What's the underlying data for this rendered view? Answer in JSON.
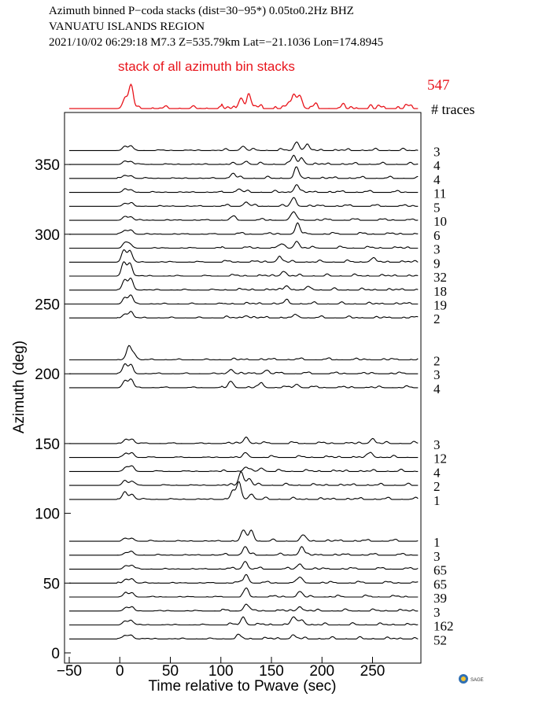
{
  "header": {
    "line1": "Azimuth binned P−coda stacks (dist=30−95*)  0.05to0.2Hz  BHZ",
    "line2": "VANUATU ISLANDS REGION",
    "line3": "2021/10/02  06:29:18  M7.3  Z=535.79km Lat=−21.1036 Lon=174.8945"
  },
  "logo_text": "SAGE",
  "chart_data": {
    "type": "line",
    "title": "",
    "xlabel": "Time relative to Pwave (sec)",
    "ylabel": "Azimuth (deg)",
    "xlim": [
      -50,
      295
    ],
    "ylim": [
      0,
      385
    ],
    "xticks": [
      -50,
      0,
      50,
      100,
      150,
      200,
      250
    ],
    "yticks": [
      0,
      50,
      100,
      150,
      200,
      250,
      300,
      350
    ],
    "xtick_labels": [
      "−50",
      "0",
      "50",
      "100",
      "150",
      "200",
      "250"
    ],
    "ytick_labels": [
      "0",
      "50",
      "100",
      "150",
      "200",
      "250",
      "300",
      "350"
    ],
    "stack": {
      "label": "stack of all azimuth bin stacks",
      "count": "547",
      "peaks": [
        [
          5,
          0.4
        ],
        [
          11,
          1.0
        ],
        [
          120,
          0.45
        ],
        [
          128,
          0.5
        ],
        [
          172,
          0.6
        ],
        [
          178,
          0.55
        ]
      ]
    },
    "count_header": "# traces",
    "series": [
      {
        "azimuth": 10,
        "count": "52",
        "peaks": [
          [
            5,
            0.4
          ],
          [
            11,
            0.45
          ],
          [
            118,
            0.35
          ],
          [
            172,
            0.4
          ]
        ]
      },
      {
        "azimuth": 20,
        "count": "162",
        "peaks": [
          [
            5,
            0.45
          ],
          [
            11,
            0.55
          ],
          [
            122,
            0.9
          ],
          [
            172,
            0.95
          ],
          [
            180,
            0.6
          ]
        ]
      },
      {
        "azimuth": 30,
        "count": "3",
        "peaks": [
          [
            6,
            0.4
          ],
          [
            12,
            0.4
          ],
          [
            125,
            0.8
          ],
          [
            178,
            0.5
          ]
        ]
      },
      {
        "azimuth": 40,
        "count": "39",
        "peaks": [
          [
            6,
            0.45
          ],
          [
            12,
            0.5
          ],
          [
            125,
            0.9
          ],
          [
            178,
            0.6
          ]
        ]
      },
      {
        "azimuth": 50,
        "count": "65",
        "peaks": [
          [
            6,
            0.45
          ],
          [
            12,
            0.5
          ],
          [
            125,
            1.0
          ],
          [
            178,
            0.7
          ]
        ]
      },
      {
        "azimuth": 60,
        "count": "65",
        "peaks": [
          [
            6,
            0.4
          ],
          [
            12,
            0.45
          ],
          [
            124,
            0.9
          ],
          [
            178,
            0.6
          ]
        ]
      },
      {
        "azimuth": 70,
        "count": "3",
        "peaks": [
          [
            6,
            0.3
          ],
          [
            12,
            0.35
          ],
          [
            124,
            1.0
          ],
          [
            180,
            1.0
          ]
        ]
      },
      {
        "azimuth": 80,
        "count": "1",
        "peaks": [
          [
            6,
            0.3
          ],
          [
            12,
            0.35
          ],
          [
            122,
            1.2
          ],
          [
            130,
            1.3
          ],
          [
            182,
            0.7
          ]
        ]
      },
      {
        "azimuth": 110,
        "count": "1",
        "peaks": [
          [
            5,
            0.9
          ],
          [
            12,
            0.6
          ],
          [
            112,
            1.0
          ],
          [
            118,
            1.8
          ],
          [
            130,
            0.6
          ]
        ]
      },
      {
        "azimuth": 120,
        "count": "2",
        "peaks": [
          [
            5,
            0.6
          ],
          [
            12,
            0.5
          ],
          [
            120,
            1.6
          ],
          [
            128,
            0.8
          ]
        ]
      },
      {
        "azimuth": 130,
        "count": "4",
        "peaks": [
          [
            6,
            0.5
          ],
          [
            12,
            0.6
          ],
          [
            125,
            0.5
          ],
          [
            140,
            0.4
          ]
        ]
      },
      {
        "azimuth": 140,
        "count": "12",
        "peaks": [
          [
            6,
            0.45
          ],
          [
            12,
            0.55
          ],
          [
            125,
            0.45
          ],
          [
            248,
            0.6
          ]
        ]
      },
      {
        "azimuth": 150,
        "count": "3",
        "peaks": [
          [
            6,
            0.5
          ],
          [
            12,
            0.5
          ],
          [
            125,
            0.75
          ],
          [
            250,
            0.55
          ]
        ]
      },
      {
        "azimuth": 190,
        "count": "4",
        "peaks": [
          [
            5,
            0.8
          ],
          [
            11,
            1.0
          ],
          [
            110,
            0.7
          ],
          [
            140,
            0.5
          ],
          [
            175,
            0.4
          ]
        ]
      },
      {
        "azimuth": 200,
        "count": "3",
        "peaks": [
          [
            5,
            1.1
          ],
          [
            11,
            1.0
          ],
          [
            110,
            0.5
          ],
          [
            145,
            0.4
          ]
        ]
      },
      {
        "azimuth": 210,
        "count": "2",
        "peaks": [
          [
            9,
            1.6
          ],
          [
            14,
            0.7
          ]
        ]
      },
      {
        "azimuth": 240,
        "count": "2",
        "peaks": [
          [
            5,
            0.45
          ],
          [
            11,
            0.7
          ],
          [
            125,
            0.25
          ],
          [
            175,
            0.3
          ]
        ]
      },
      {
        "azimuth": 250,
        "count": "19",
        "peaks": [
          [
            5,
            0.7
          ],
          [
            11,
            1.0
          ],
          [
            165,
            0.35
          ]
        ]
      },
      {
        "azimuth": 260,
        "count": "18",
        "peaks": [
          [
            5,
            1.2
          ],
          [
            11,
            1.3
          ],
          [
            165,
            0.5
          ],
          [
            188,
            0.3
          ]
        ]
      },
      {
        "azimuth": 270,
        "count": "32",
        "peaks": [
          [
            4,
            1.6
          ],
          [
            10,
            1.5
          ],
          [
            162,
            0.55
          ]
        ]
      },
      {
        "azimuth": 280,
        "count": "9",
        "peaks": [
          [
            4,
            1.4
          ],
          [
            10,
            1.3
          ],
          [
            158,
            0.6
          ],
          [
            250,
            0.4
          ]
        ]
      },
      {
        "azimuth": 290,
        "count": "3",
        "peaks": [
          [
            5,
            0.6
          ],
          [
            10,
            0.5
          ],
          [
            160,
            0.5
          ],
          [
            175,
            0.8
          ]
        ]
      },
      {
        "azimuth": 300,
        "count": "6",
        "peaks": [
          [
            5,
            0.45
          ],
          [
            11,
            0.5
          ],
          [
            176,
            1.2
          ]
        ]
      },
      {
        "azimuth": 310,
        "count": "10",
        "peaks": [
          [
            5,
            0.45
          ],
          [
            11,
            0.4
          ],
          [
            112,
            0.35
          ],
          [
            172,
            1.0
          ]
        ]
      },
      {
        "azimuth": 320,
        "count": "5",
        "peaks": [
          [
            5,
            0.35
          ],
          [
            11,
            0.35
          ],
          [
            125,
            0.5
          ],
          [
            172,
            1.0
          ]
        ]
      },
      {
        "azimuth": 330,
        "count": "11",
        "peaks": [
          [
            5,
            0.3
          ],
          [
            11,
            0.3
          ],
          [
            118,
            0.4
          ],
          [
            175,
            0.9
          ]
        ]
      },
      {
        "azimuth": 340,
        "count": "4",
        "peaks": [
          [
            5,
            0.35
          ],
          [
            11,
            0.3
          ],
          [
            112,
            0.6
          ],
          [
            175,
            1.2
          ]
        ]
      },
      {
        "azimuth": 350,
        "count": "4",
        "peaks": [
          [
            5,
            0.4
          ],
          [
            11,
            0.35
          ],
          [
            125,
            0.35
          ],
          [
            172,
            1.0
          ],
          [
            180,
            0.7
          ]
        ]
      },
      {
        "azimuth": 360,
        "count": "3",
        "peaks": [
          [
            5,
            0.5
          ],
          [
            11,
            0.45
          ],
          [
            122,
            0.5
          ],
          [
            175,
            1.0
          ],
          [
            185,
            0.6
          ]
        ]
      }
    ]
  }
}
